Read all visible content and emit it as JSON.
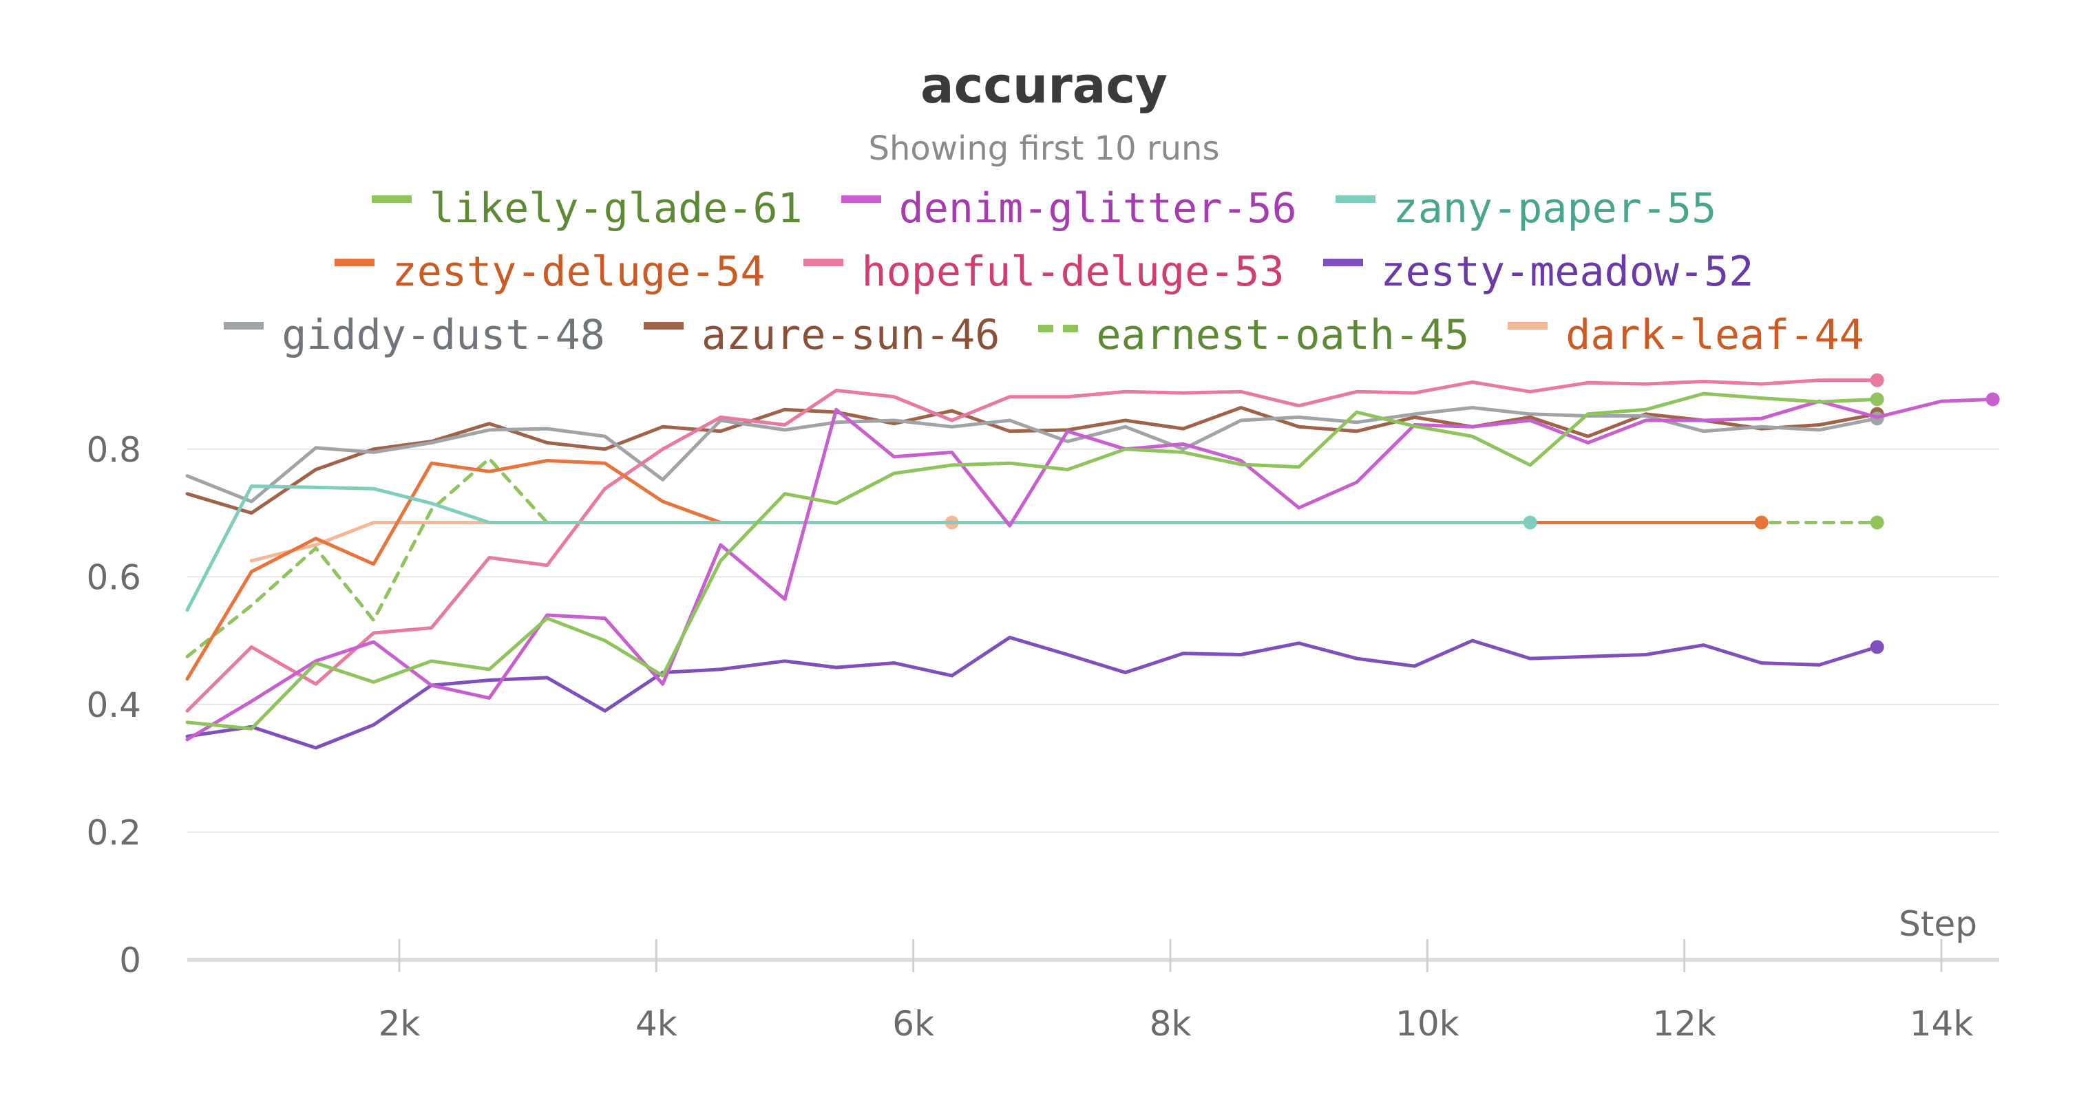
{
  "chart_data": {
    "type": "line",
    "title": "accuracy",
    "subtitle": "Showing first 10 runs",
    "xlabel": "Step",
    "ylabel": "",
    "xlim": [
      350,
      14450
    ],
    "ylim": [
      0,
      0.9
    ],
    "x_ticks": [
      2000,
      4000,
      6000,
      8000,
      10000,
      12000,
      14000
    ],
    "x_tick_labels": [
      "2k",
      "4k",
      "6k",
      "8k",
      "10k",
      "12k",
      "14k"
    ],
    "y_ticks": [
      0,
      0.2,
      0.4,
      0.6,
      0.8
    ],
    "y_tick_labels": [
      "0",
      "0.2",
      "0.4",
      "0.6",
      "0.8"
    ],
    "grid": "horizontal",
    "legend_position": "top",
    "series": [
      {
        "name": "likely-glade-61",
        "color": "#8fc45c",
        "dash": false,
        "x": [
          350,
          850,
          1350,
          1800,
          2250,
          2700,
          3150,
          3600,
          4050,
          4500,
          5000,
          5400,
          5850,
          6300,
          6750,
          7200,
          7650,
          8100,
          8550,
          9000,
          9450,
          9900,
          10350,
          10800,
          11250,
          11700,
          12150,
          12600,
          13050,
          13500
        ],
        "y": [
          0.372,
          0.362,
          0.465,
          0.435,
          0.468,
          0.455,
          0.535,
          0.5,
          0.445,
          0.625,
          0.73,
          0.715,
          0.762,
          0.775,
          0.778,
          0.768,
          0.8,
          0.795,
          0.776,
          0.772,
          0.858,
          0.836,
          0.82,
          0.775,
          0.855,
          0.862,
          0.887,
          0.88,
          0.874,
          0.878
        ]
      },
      {
        "name": "denim-glitter-56",
        "color": "#c75fce",
        "dash": false,
        "x": [
          350,
          850,
          1350,
          1800,
          2250,
          2700,
          3150,
          3600,
          4050,
          4500,
          5000,
          5400,
          5850,
          6300,
          6750,
          7200,
          7650,
          8100,
          8550,
          9000,
          9450,
          9900,
          10350,
          10800,
          11250,
          11700,
          12150,
          12600,
          13050,
          13500,
          14000,
          14400
        ],
        "y": [
          0.345,
          0.405,
          0.468,
          0.498,
          0.43,
          0.41,
          0.54,
          0.535,
          0.432,
          0.65,
          0.565,
          0.862,
          0.788,
          0.795,
          0.68,
          0.828,
          0.8,
          0.808,
          0.782,
          0.708,
          0.748,
          0.838,
          0.835,
          0.845,
          0.81,
          0.845,
          0.845,
          0.848,
          0.875,
          0.85,
          0.875,
          0.878
        ]
      },
      {
        "name": "zany-paper-55",
        "color": "#7fcdbb",
        "dash": false,
        "x": [
          350,
          850,
          1350,
          1800,
          2250,
          2700,
          3150,
          3600,
          4050,
          4500,
          5000,
          5400,
          5850,
          6300,
          6750,
          7200,
          7650,
          8100,
          8550,
          9000,
          9450,
          9900,
          10350,
          10800
        ],
        "y": [
          0.548,
          0.742,
          0.74,
          0.738,
          0.715,
          0.685,
          0.685,
          0.685,
          0.685,
          0.685,
          0.685,
          0.685,
          0.685,
          0.685,
          0.685,
          0.685,
          0.685,
          0.685,
          0.685,
          0.685,
          0.685,
          0.685,
          0.685,
          0.685
        ]
      },
      {
        "name": "zesty-deluge-54",
        "color": "#e8743b",
        "dash": false,
        "x": [
          350,
          850,
          1350,
          1800,
          2250,
          2700,
          3150,
          3600,
          4050,
          4500,
          10800,
          12600
        ],
        "y": [
          0.44,
          0.608,
          0.66,
          0.62,
          0.778,
          0.765,
          0.782,
          0.778,
          0.718,
          0.685,
          0.685,
          0.685
        ]
      },
      {
        "name": "hopeful-deluge-53",
        "color": "#e8799f",
        "dash": false,
        "x": [
          350,
          850,
          1350,
          1800,
          2250,
          2700,
          3150,
          3600,
          4050,
          4500,
          5000,
          5400,
          5850,
          6300,
          6750,
          7200,
          7650,
          8100,
          8550,
          9000,
          9450,
          9900,
          10350,
          10800,
          11250,
          11700,
          12150,
          12600,
          13050,
          13500
        ],
        "y": [
          0.39,
          0.49,
          0.432,
          0.512,
          0.52,
          0.63,
          0.618,
          0.738,
          0.8,
          0.85,
          0.838,
          0.892,
          0.882,
          0.845,
          0.882,
          0.882,
          0.89,
          0.888,
          0.89,
          0.868,
          0.89,
          0.888,
          0.905,
          0.89,
          0.904,
          0.902,
          0.906,
          0.902,
          0.908,
          0.908
        ]
      },
      {
        "name": "zesty-meadow-52",
        "color": "#7e4fbd",
        "dash": false,
        "x": [
          350,
          850,
          1350,
          1800,
          2250,
          2700,
          3150,
          3600,
          4050,
          4500,
          5000,
          5400,
          5850,
          6300,
          6750,
          7200,
          7650,
          8100,
          8550,
          9000,
          9450,
          9900,
          10350,
          10800,
          11250,
          11700,
          12150,
          12600,
          13050,
          13500
        ],
        "y": [
          0.35,
          0.365,
          0.332,
          0.368,
          0.43,
          0.438,
          0.442,
          0.39,
          0.45,
          0.455,
          0.468,
          0.458,
          0.465,
          0.445,
          0.505,
          0.478,
          0.45,
          0.48,
          0.478,
          0.496,
          0.472,
          0.46,
          0.5,
          0.472,
          0.475,
          0.478,
          0.493,
          0.465,
          0.462,
          0.49
        ]
      },
      {
        "name": "giddy-dust-48",
        "color": "#a0a4a8",
        "dash": false,
        "x": [
          350,
          850,
          1350,
          1800,
          2250,
          2700,
          3150,
          3600,
          4050,
          4500,
          5000,
          5400,
          5850,
          6300,
          6750,
          7200,
          7650,
          8100,
          8550,
          9000,
          9450,
          9900,
          10350,
          10800,
          11250,
          11700,
          12150,
          12600,
          13050,
          13500
        ],
        "y": [
          0.758,
          0.718,
          0.802,
          0.795,
          0.81,
          0.83,
          0.832,
          0.82,
          0.752,
          0.845,
          0.83,
          0.842,
          0.845,
          0.835,
          0.845,
          0.812,
          0.835,
          0.8,
          0.845,
          0.85,
          0.842,
          0.855,
          0.865,
          0.855,
          0.852,
          0.852,
          0.828,
          0.835,
          0.83,
          0.848
        ]
      },
      {
        "name": "azure-sun-46",
        "color": "#a0634a",
        "dash": false,
        "x": [
          350,
          850,
          1350,
          1800,
          2250,
          2700,
          3150,
          3600,
          4050,
          4500,
          5000,
          5400,
          5850,
          6300,
          6750,
          7200,
          7650,
          8100,
          8550,
          9000,
          9450,
          9900,
          10350,
          10800,
          11250,
          11700,
          12150,
          12600,
          13050,
          13500
        ],
        "y": [
          0.73,
          0.7,
          0.768,
          0.8,
          0.812,
          0.84,
          0.81,
          0.8,
          0.835,
          0.828,
          0.862,
          0.858,
          0.84,
          0.86,
          0.828,
          0.83,
          0.845,
          0.832,
          0.865,
          0.835,
          0.828,
          0.85,
          0.835,
          0.85,
          0.82,
          0.855,
          0.845,
          0.832,
          0.838,
          0.855
        ]
      },
      {
        "name": "earnest-oath-45",
        "color": "#8fc45c",
        "dash": true,
        "x": [
          350,
          850,
          1350,
          1800,
          2250,
          2700,
          3150,
          12600,
          13500
        ],
        "y": [
          0.475,
          0.555,
          0.645,
          0.532,
          0.705,
          0.785,
          0.685,
          0.685,
          0.685
        ]
      },
      {
        "name": "dark-leaf-44",
        "color": "#f4b898",
        "dash": false,
        "x": [
          850,
          1350,
          1800,
          2250,
          2700,
          6300
        ],
        "y": [
          0.625,
          0.65,
          0.685,
          0.685,
          0.685,
          0.685
        ]
      }
    ]
  }
}
